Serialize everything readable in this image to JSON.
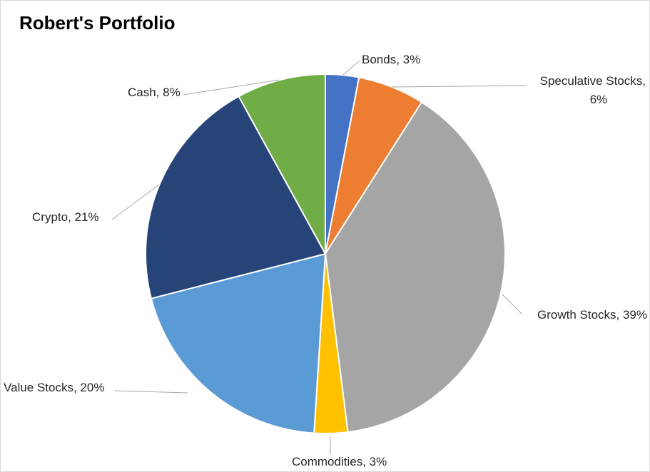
{
  "chart_data": {
    "type": "pie",
    "title": "Robert's Portfolio",
    "start_angle_deg": 0,
    "direction": "clockwise",
    "slices": [
      {
        "label": "Bonds",
        "value": 3,
        "display": "Bonds, 3%",
        "color": "#4472C4"
      },
      {
        "label": "Speculative Stocks",
        "value": 6,
        "display": "Speculative Stocks, 6%",
        "color": "#ED7D31"
      },
      {
        "label": "Growth Stocks",
        "value": 39,
        "display": "Growth Stocks, 39%",
        "color": "#A5A5A5"
      },
      {
        "label": "Commodities",
        "value": 3,
        "display": "Commodities, 3%",
        "color": "#FFC000"
      },
      {
        "label": "Value Stocks",
        "value": 20,
        "display": "Value Stocks, 20%",
        "color": "#5B9BD5"
      },
      {
        "label": "Crypto",
        "value": 21,
        "display": "Crypto, 21%",
        "color": "#264478"
      },
      {
        "label": "Cash",
        "value": 8,
        "display": "Cash, 8%",
        "color": "#70AD47"
      }
    ],
    "data_labels": "outside with leader lines",
    "legend": "none"
  }
}
